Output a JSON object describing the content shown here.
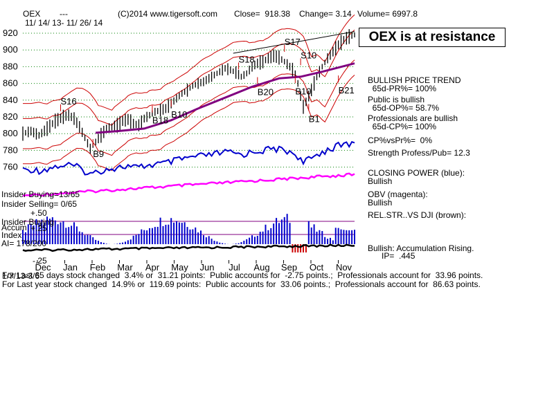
{
  "header": {
    "symbol": "OEX",
    "dashes": "---",
    "site": "(C)2014 www.tigersoft.com",
    "close": "Close=  918.38",
    "change": "Change= 3.14",
    "volume": "Volume= 6997.8",
    "date_range": "11/ 14/ 13- 11/ 26/ 14"
  },
  "callout": "OEX is at resistance",
  "right_panel": [
    "BULLISH PRICE TREND",
    "  65d-PR%= 100%",
    "Public is bullish",
    "  65d-OP%= 58.7%",
    "Professionals are bullish",
    "  65d-CP%= 100%",
    "CP%vsPr%=  0%",
    "Strength Profess/Pub= 12.3",
    "CLOSING POWER (blue):",
    "Bullish",
    "OBV (magenta):",
    "Bullish",
    "REL.STR..VS DJI (brown):",
    "Bullish: Accumulation Rising.",
    "      IP=  .445"
  ],
  "left_labels": {
    "insider_buying": "Insider Buying=13/65",
    "insider_selling": "Insider Selling= 0/65",
    "plus50": "+.50",
    "insider_buying2": "Insider Buying",
    "accum": "Accum",
    "plus25": "+.25",
    "index": "Index",
    "ai": "AI= 178/200",
    "minus25": "-.25"
  },
  "footer": {
    "line1": "For Last 65 days stock changed  3.4% or  31.21 points:  Public accounts for  -2.75 points.;  Professionals account for  33.96 points.",
    "line2": "For Last year stock changed  14.9% or  119.69 points:  Public accounts for  33.06 points.;  Professionals account for  86.63 points.",
    "overlay": "1/7/13-3/6"
  },
  "colors": {
    "price": "#000000",
    "bands": "#cc0000",
    "ma": "#800080",
    "closing_power": "#0000cc",
    "obv": "#ff00ff",
    "accum": "#0000cc",
    "rel_strength": "#7a2a00",
    "signals": "#cc0000",
    "grid": "#008000"
  },
  "chart_data": {
    "type": "line",
    "title": "OEX",
    "x_ticks": [
      "Dec",
      "Jan",
      "Feb",
      "Mar",
      "Apr",
      "May",
      "Jun",
      "Jul",
      "Aug",
      "Sep",
      "Oct",
      "Nov"
    ],
    "y_ticks": [
      760,
      780,
      800,
      820,
      840,
      860,
      880,
      900,
      920
    ],
    "ylim": [
      745,
      928
    ],
    "price_points": [
      [
        0,
        800
      ],
      [
        3,
        803
      ],
      [
        6,
        798
      ],
      [
        9,
        806
      ],
      [
        12,
        815
      ],
      [
        15,
        820
      ],
      [
        17,
        822
      ],
      [
        19,
        818
      ],
      [
        21,
        808
      ],
      [
        23,
        795
      ],
      [
        25,
        782
      ],
      [
        27,
        790
      ],
      [
        29,
        798
      ],
      [
        31,
        806
      ],
      [
        33,
        808
      ],
      [
        35,
        810
      ],
      [
        37,
        815
      ],
      [
        39,
        817
      ],
      [
        41,
        812
      ],
      [
        43,
        810
      ],
      [
        45,
        818
      ],
      [
        47,
        822
      ],
      [
        49,
        826
      ],
      [
        51,
        828
      ],
      [
        53,
        830
      ],
      [
        55,
        836
      ],
      [
        57,
        842
      ],
      [
        59,
        848
      ],
      [
        61,
        852
      ],
      [
        63,
        857
      ],
      [
        65,
        860
      ],
      [
        67,
        862
      ],
      [
        69,
        866
      ],
      [
        71,
        870
      ],
      [
        73,
        874
      ],
      [
        75,
        878
      ],
      [
        77,
        876
      ],
      [
        79,
        873
      ],
      [
        81,
        868
      ],
      [
        83,
        872
      ],
      [
        85,
        880
      ],
      [
        87,
        884
      ],
      [
        89,
        886
      ],
      [
        91,
        890
      ],
      [
        93,
        893
      ],
      [
        95,
        891
      ],
      [
        97,
        886
      ],
      [
        99,
        880
      ],
      [
        101,
        872
      ],
      [
        102,
        860
      ],
      [
        103,
        845
      ],
      [
        104,
        832
      ],
      [
        105,
        838
      ],
      [
        107,
        852
      ],
      [
        109,
        868
      ],
      [
        111,
        880
      ],
      [
        113,
        890
      ],
      [
        115,
        898
      ],
      [
        117,
        906
      ],
      [
        119,
        912
      ],
      [
        121,
        916
      ],
      [
        123,
        918
      ]
    ],
    "ma_points": [
      [
        27,
        801
      ],
      [
        35,
        803
      ],
      [
        45,
        806
      ],
      [
        55,
        816
      ],
      [
        65,
        830
      ],
      [
        75,
        843
      ],
      [
        85,
        856
      ],
      [
        95,
        866
      ],
      [
        103,
        868
      ],
      [
        111,
        874
      ],
      [
        123,
        884
      ]
    ],
    "signals": [
      {
        "label": "S16",
        "x": 14,
        "y": 835
      },
      {
        "label": "B9",
        "x": 26,
        "y": 772
      },
      {
        "label": "B18",
        "x": 48,
        "y": 812
      },
      {
        "label": "B10",
        "x": 55,
        "y": 819
      },
      {
        "label": "S18",
        "x": 80,
        "y": 885
      },
      {
        "label": "B20",
        "x": 87,
        "y": 846
      },
      {
        "label": "S17",
        "x": 97,
        "y": 906
      },
      {
        "label": "S10",
        "x": 103,
        "y": 890
      },
      {
        "label": "B10",
        "x": 101,
        "y": 847
      },
      {
        "label": "B1",
        "x": 106,
        "y": 814
      },
      {
        "label": "B21",
        "x": 117,
        "y": 848
      }
    ]
  }
}
